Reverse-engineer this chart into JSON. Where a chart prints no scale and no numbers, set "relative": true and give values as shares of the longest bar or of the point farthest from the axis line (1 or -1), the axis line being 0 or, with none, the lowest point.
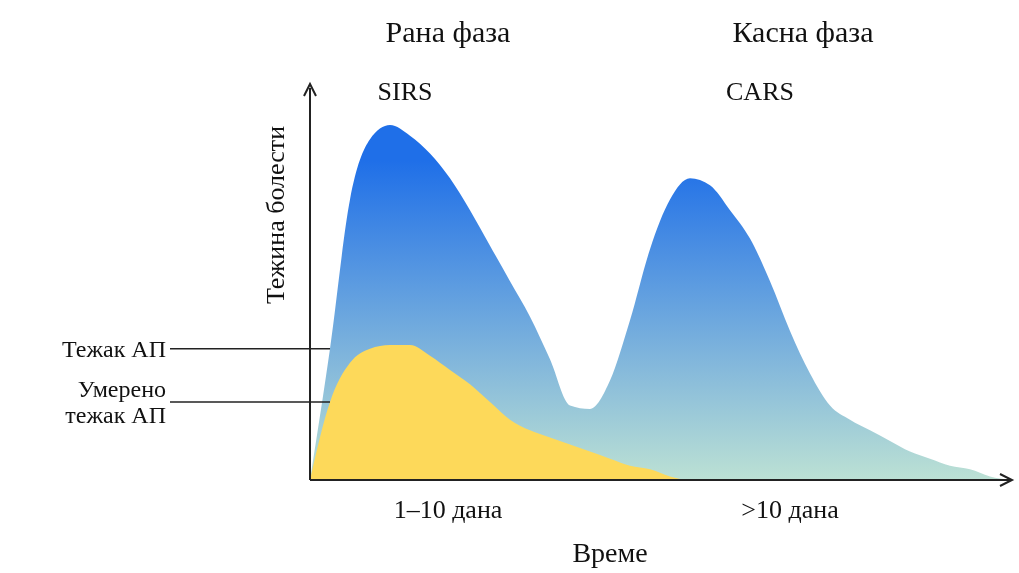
{
  "chart_data": {
    "type": "area",
    "relative": true,
    "xlabel": "Време",
    "ylabel": "Тежина болести",
    "legend": false,
    "categories": [
      null,
      null,
      null,
      null,
      null,
      null,
      null,
      null,
      null,
      null,
      null,
      null,
      null,
      null,
      null,
      null,
      null,
      null,
      null,
      null,
      null,
      null,
      null,
      null,
      null,
      null,
      null,
      null,
      null,
      null,
      null,
      null,
      null,
      null,
      null,
      null
    ],
    "series": [
      {
        "name": "Тежак АП",
        "color": "#1f6fe8",
        "values": [
          0,
          0.37,
          0.79,
          0.96,
          1.0,
          0.97,
          0.92,
          0.85,
          0.76,
          0.66,
          0.56,
          0.46,
          0.34,
          0.21,
          0.2,
          0.28,
          0.45,
          0.65,
          0.79,
          0.85,
          0.83,
          0.76,
          0.68,
          0.56,
          0.42,
          0.3,
          0.21,
          0.17,
          0.14,
          0.11,
          0.08,
          0.06,
          0.04,
          0.03,
          0.01,
          0
        ]
      },
      {
        "name": "Умерено тежак АП",
        "color": "#fdd95a",
        "values": [
          0,
          0.22,
          0.33,
          0.37,
          0.38,
          0.38,
          0.35,
          0.31,
          0.27,
          0.22,
          0.17,
          0.14,
          0.12,
          0.1,
          0.08,
          0.06,
          0.04,
          0.03,
          0.01,
          0,
          0,
          0,
          0,
          0,
          0,
          0,
          0,
          0,
          0,
          0,
          0,
          0,
          0,
          0,
          0,
          0
        ]
      }
    ],
    "annotations": [
      "Рана фаза",
      "Касна фаза",
      "SIRS",
      "CARS",
      "1–10 дана",
      ">10 дана"
    ]
  }
}
